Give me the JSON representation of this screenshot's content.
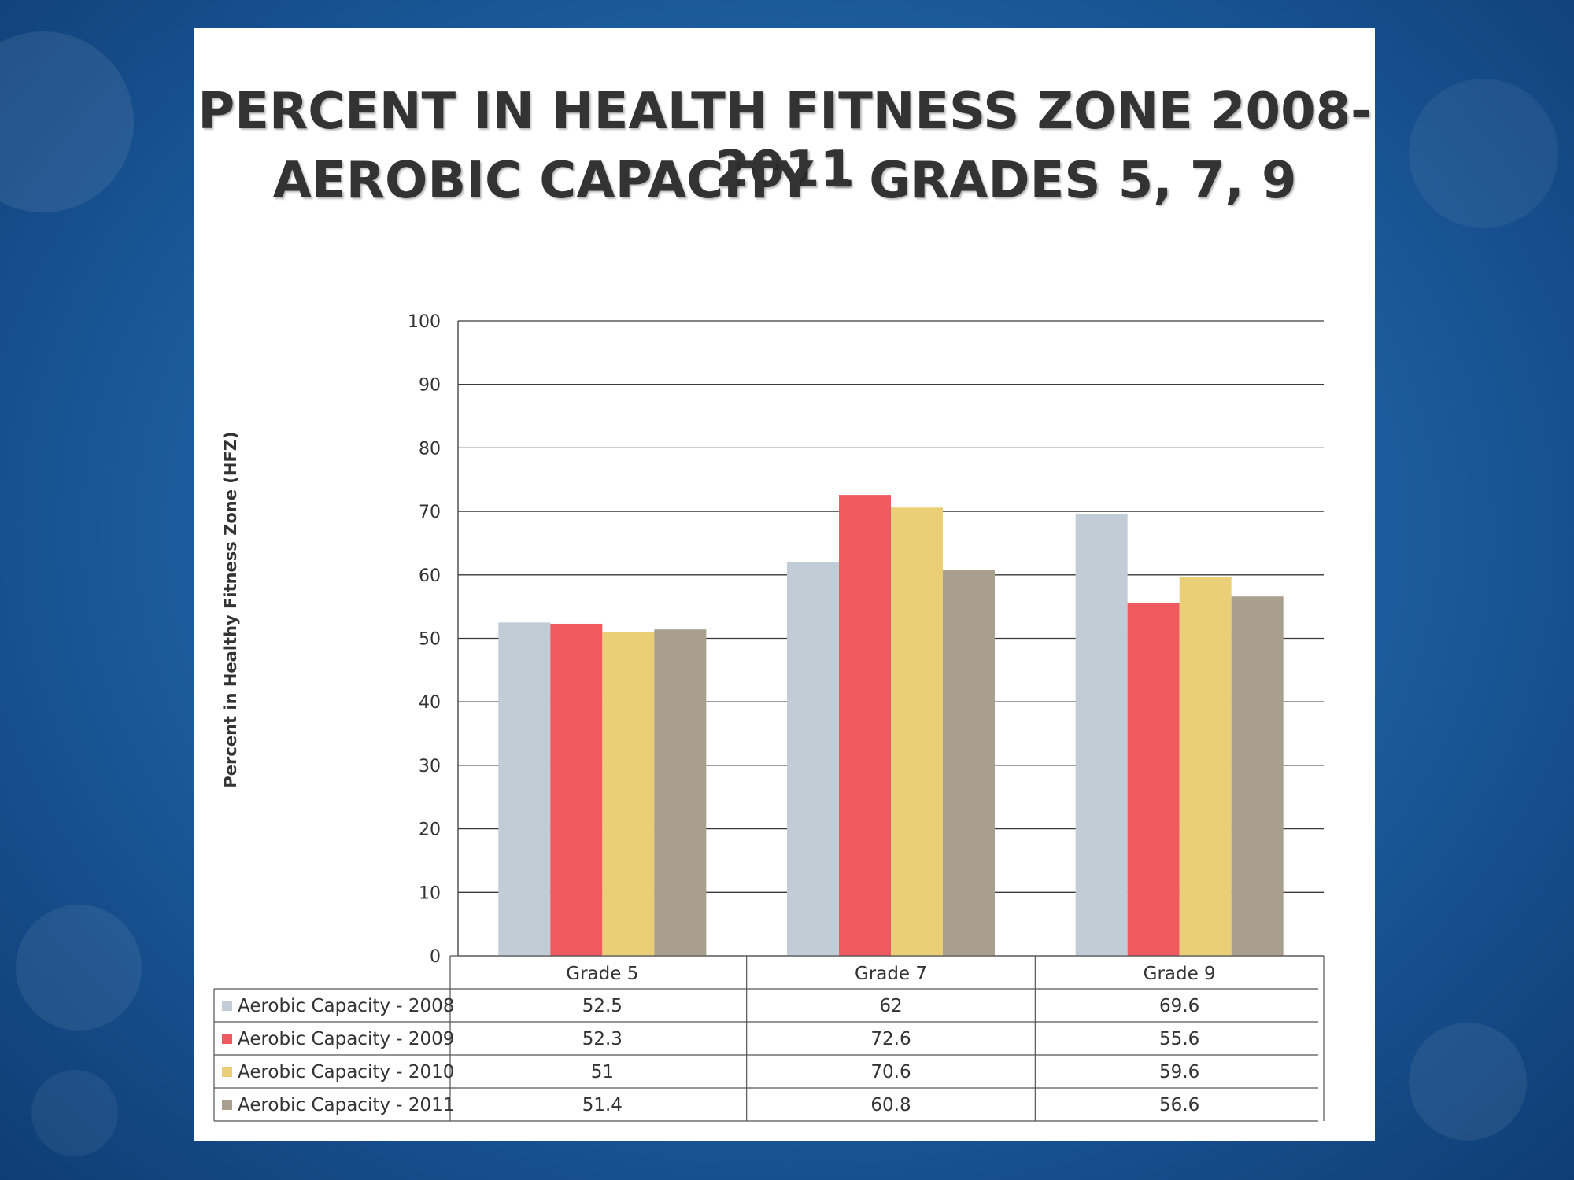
{
  "chart_data": {
    "type": "bar",
    "title": "PERCENT IN HEALTH FITNESS ZONE 2008-2011",
    "subtitle": "AEROBIC CAPACITY - GRADES 5, 7, 9",
    "ylabel": "Percent in Healthy Fitness Zone (HFZ)",
    "xlabel": "",
    "ylim": [
      0,
      100
    ],
    "yticks": [
      0,
      10,
      20,
      30,
      40,
      50,
      60,
      70,
      80,
      90,
      100
    ],
    "grid": true,
    "legend": "data-table below chart",
    "categories": [
      "Grade 5",
      "Grade 7",
      "Grade 9"
    ],
    "series": [
      {
        "name": "Aerobic Capacity - 2008",
        "color": "#c1ccd6",
        "values": [
          52.5,
          62,
          69.6
        ]
      },
      {
        "name": "Aerobic Capacity - 2009",
        "color": "#ee5a5f",
        "values": [
          52.3,
          72.6,
          55.6
        ]
      },
      {
        "name": "Aerobic Capacity - 2010",
        "color": "#ebcf78",
        "values": [
          51,
          70.6,
          59.6
        ]
      },
      {
        "name": "Aerobic Capacity - 2011",
        "color": "#a99f8e",
        "values": [
          51.4,
          60.8,
          56.6
        ]
      }
    ],
    "table_values": [
      [
        "52.5",
        "62",
        "69.6"
      ],
      [
        "52.3",
        "72.6",
        "55.6"
      ],
      [
        "51",
        "70.6",
        "59.6"
      ],
      [
        "51.4",
        "60.8",
        "56.6"
      ]
    ]
  }
}
